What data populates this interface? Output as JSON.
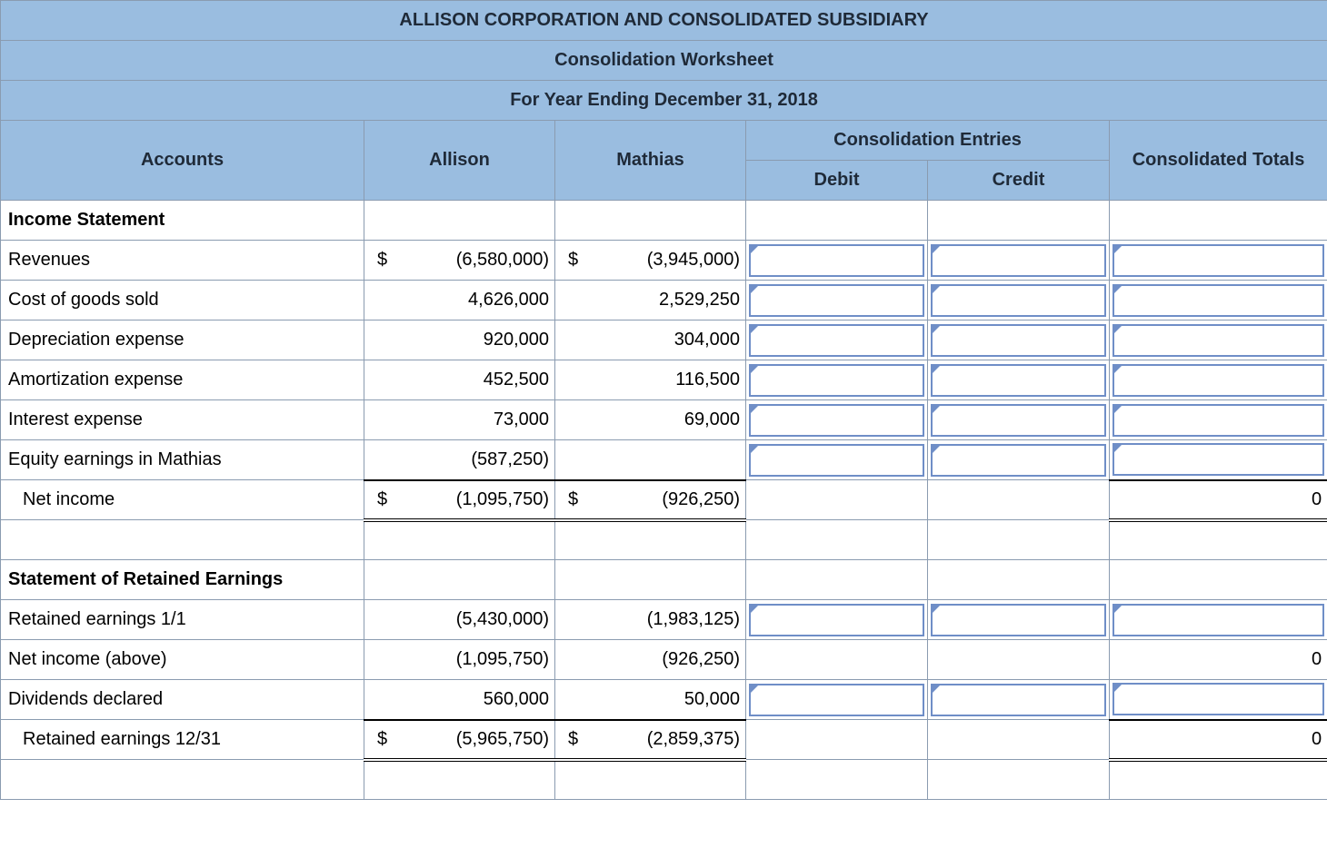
{
  "header": {
    "company": "ALLISON CORPORATION AND CONSOLIDATED SUBSIDIARY",
    "title": "Consolidation Worksheet",
    "period": "For Year Ending December 31, 2018",
    "entries_group": "Consolidation Entries"
  },
  "columns": {
    "accounts": "Accounts",
    "parent": "Allison",
    "sub": "Mathias",
    "debit": "Debit",
    "credit": "Credit",
    "totals": "Consolidated Totals"
  },
  "sections": {
    "income": "Income Statement",
    "retained": "Statement of Retained Earnings"
  },
  "rows": {
    "revenues": {
      "label": "Revenues",
      "allison": "(6,580,000)",
      "mathias": "(3,945,000)",
      "a_dollar": "$",
      "m_dollar": "$"
    },
    "cogs": {
      "label": "Cost of goods sold",
      "allison": "4,626,000",
      "mathias": "2,529,250"
    },
    "dep": {
      "label": "Depreciation expense",
      "allison": "920,000",
      "mathias": "304,000"
    },
    "amort": {
      "label": "Amortization expense",
      "allison": "452,500",
      "mathias": "116,500"
    },
    "int": {
      "label": "Interest expense",
      "allison": "73,000",
      "mathias": "69,000"
    },
    "equity": {
      "label": "Equity earnings in Mathias",
      "allison": "(587,250)",
      "mathias": ""
    },
    "netincome": {
      "label": "Net income",
      "allison": "(1,095,750)",
      "mathias": "(926,250)",
      "a_dollar": "$",
      "m_dollar": "$",
      "total": "0"
    },
    "re11": {
      "label": "Retained earnings 1/1",
      "allison": "(5,430,000)",
      "mathias": "(1,983,125)"
    },
    "niabove": {
      "label": "Net income (above)",
      "allison": "(1,095,750)",
      "mathias": "(926,250)",
      "total": "0"
    },
    "div": {
      "label": "Dividends declared",
      "allison": "560,000",
      "mathias": "50,000"
    },
    "re1231": {
      "label": "Retained earnings 12/31",
      "allison": "(5,965,750)",
      "mathias": "(2,859,375)",
      "a_dollar": "$",
      "m_dollar": "$",
      "total": "0"
    }
  },
  "style": {
    "header_bg": "#9abde0",
    "border_color": "#8a9bb0",
    "input_border": "#6f8ec7"
  }
}
